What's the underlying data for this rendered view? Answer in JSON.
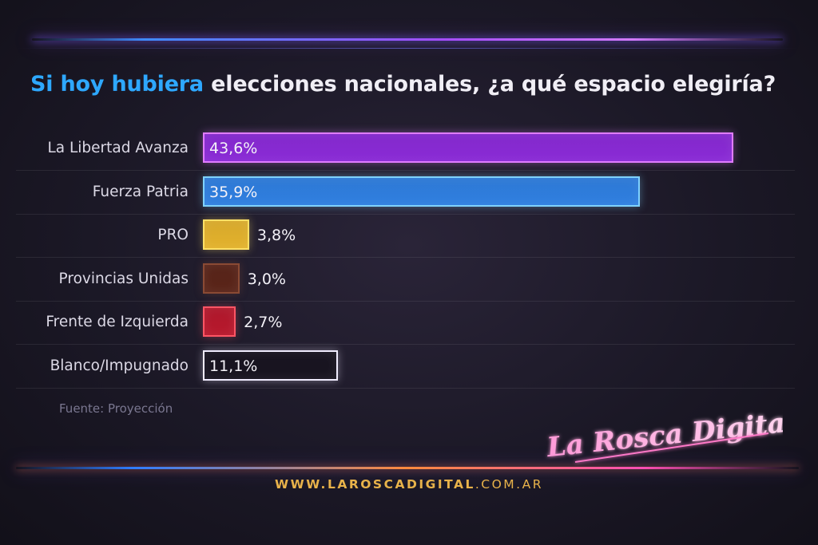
{
  "title_highlight": "Si hoy hubiera",
  "title_rest": " elecciones nacionales, ¿a qué espacio elegiría?",
  "source": "Fuente: Proyección",
  "footer": {
    "url_main": "WWW.LAROSCADIGITAL",
    "url_tld": ".COM.AR"
  },
  "logo_text": "La Rosca Digital",
  "chart_data": {
    "type": "bar",
    "orientation": "horizontal",
    "categories": [
      "La Libertad Avanza",
      "Fuerza Patria",
      "PRO",
      "Provincias Unidas",
      "Frente de Izquierda",
      "Blanco/Impugnado"
    ],
    "values": [
      43.6,
      35.9,
      3.8,
      3.0,
      2.7,
      11.1
    ],
    "value_labels": [
      "43,6%",
      "35,9%",
      "3,8%",
      "3,0%",
      "2,7%",
      "11,1%"
    ],
    "unit": "%",
    "colors": [
      "#8a2ad6",
      "#2f7fe0",
      "#e3b22c",
      "#5a2418",
      "#b8182c",
      "#181420"
    ],
    "border_colors": [
      "#e07cff",
      "#7fd2ff",
      "#ffe066",
      "#8a4a34",
      "#ff5565",
      "#f0ecff"
    ],
    "title": "Si hoy hubiera elecciones nacionales, ¿a qué espacio elegiría?",
    "xlim": [
      0,
      43.6
    ]
  }
}
